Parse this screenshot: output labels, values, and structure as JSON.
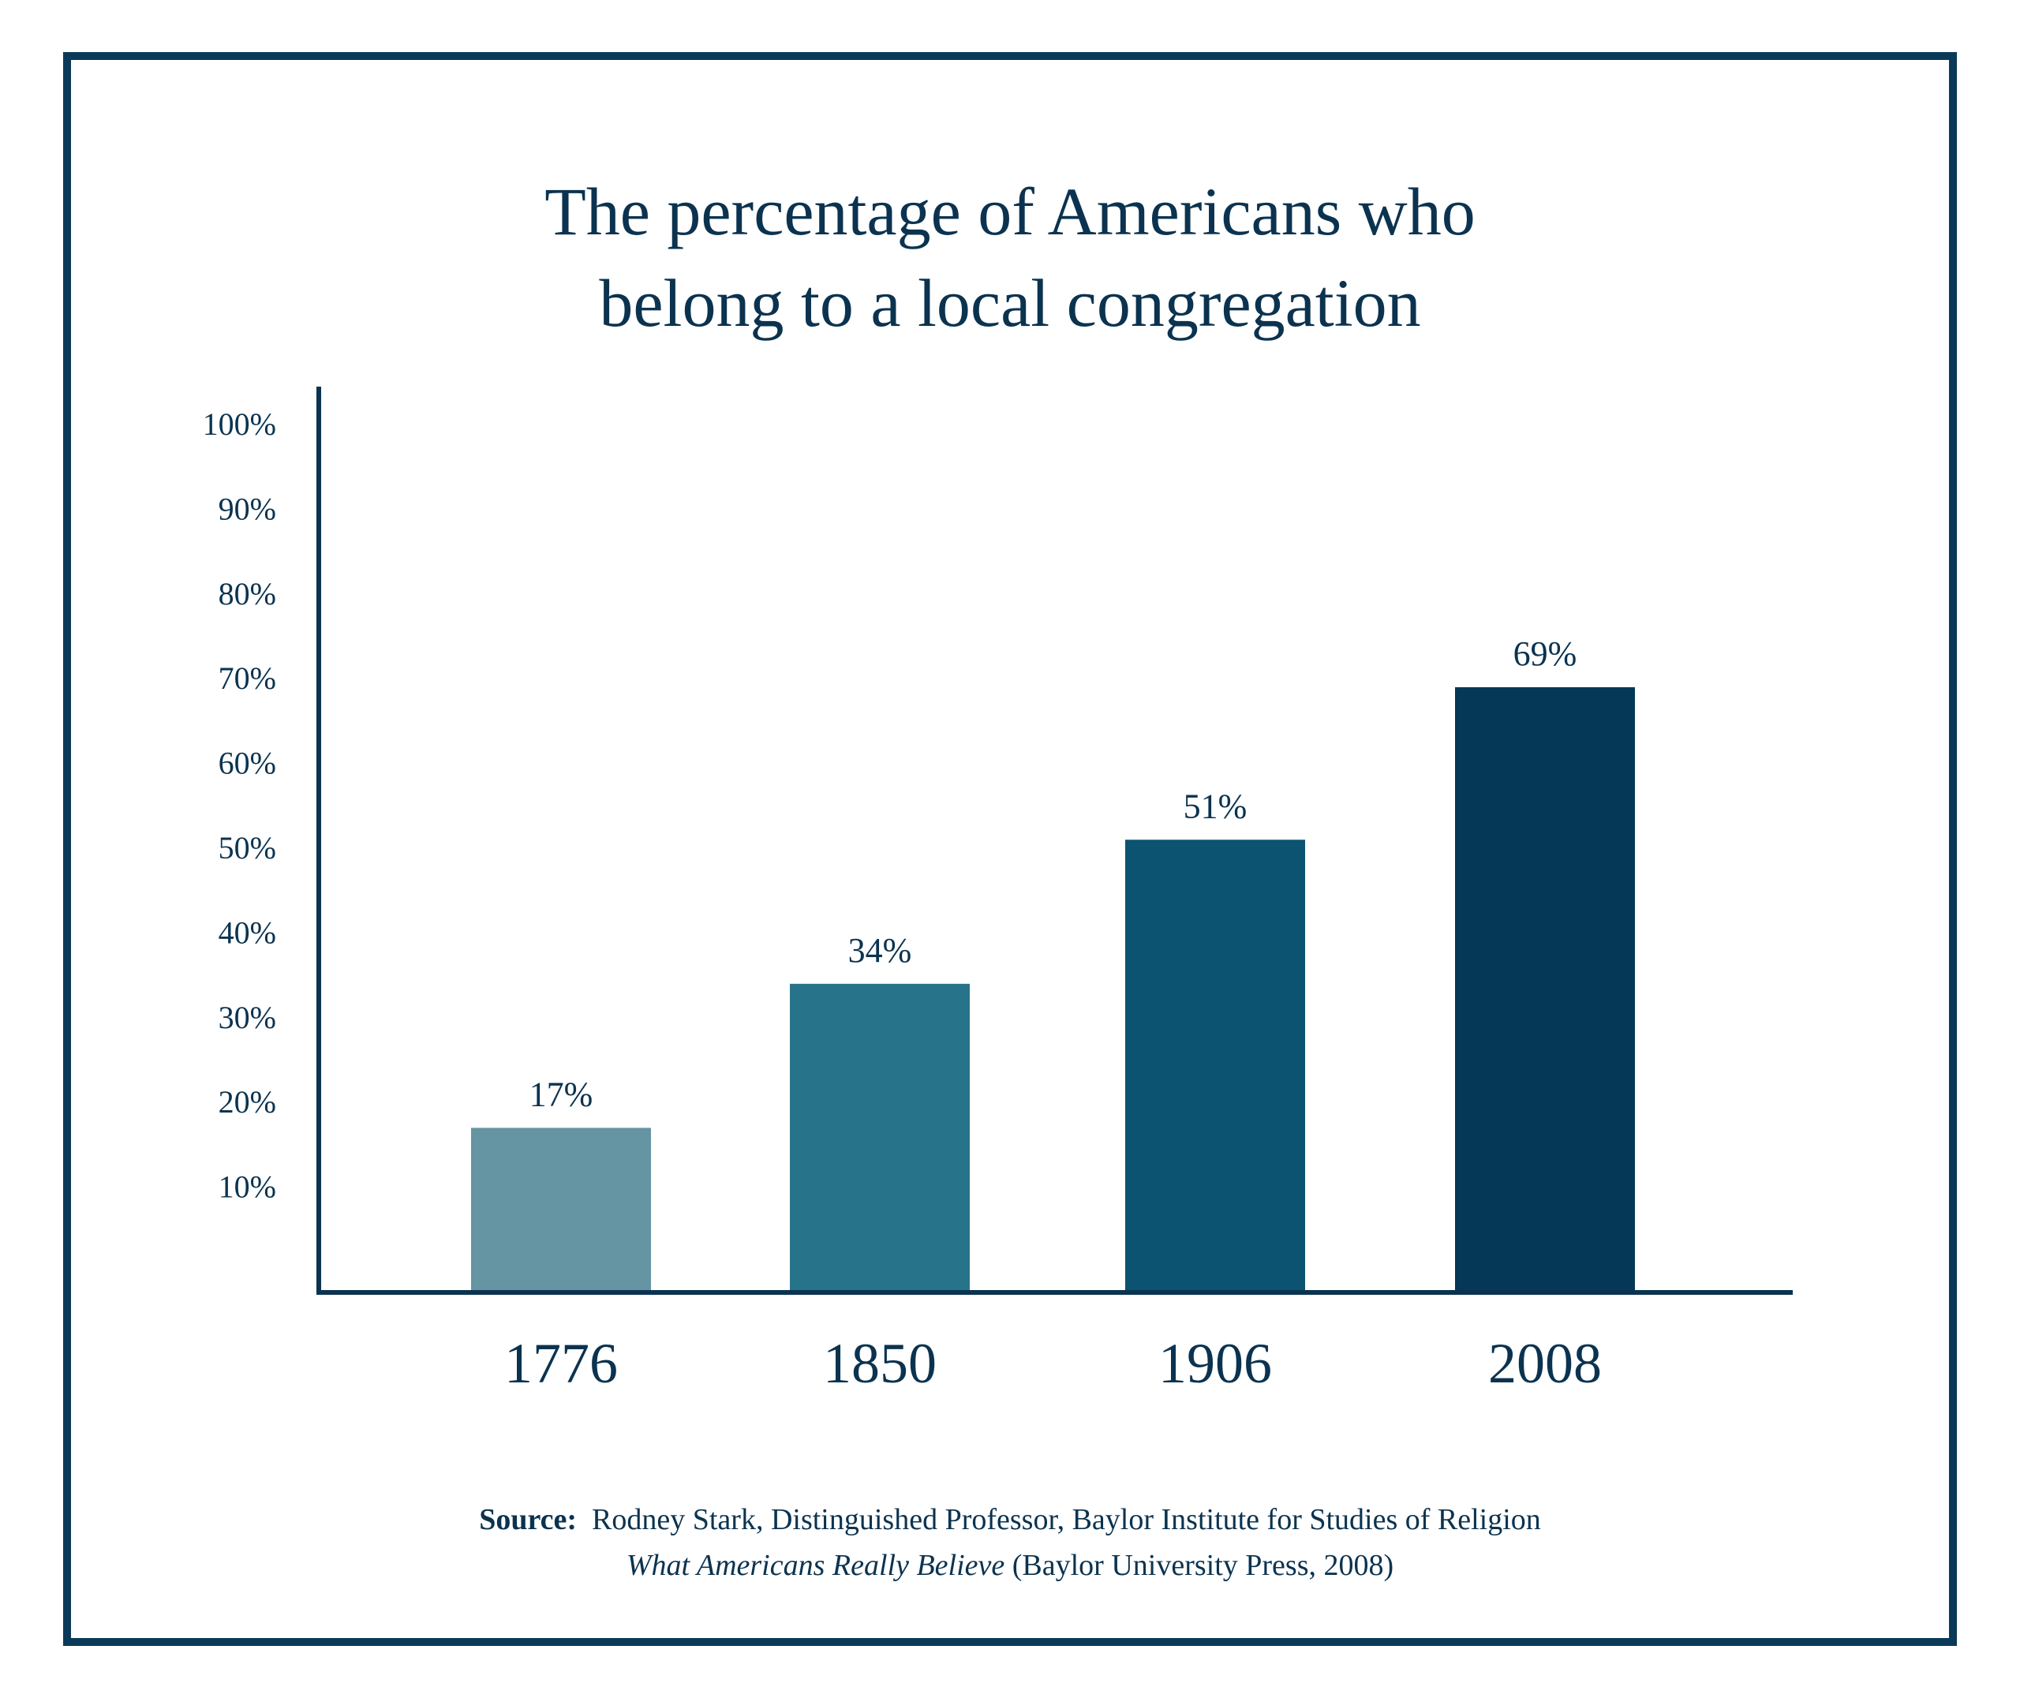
{
  "chart_data": {
    "type": "bar",
    "title_lines": [
      "The percentage of Americans who",
      "belong to a local congregation"
    ],
    "categories": [
      "1776",
      "1850",
      "1906",
      "2008"
    ],
    "values": [
      17,
      34,
      51,
      69
    ],
    "value_labels": [
      "17%",
      "34%",
      "51%",
      "69%"
    ],
    "ylim": [
      0,
      100
    ],
    "yticks": [
      10,
      20,
      30,
      40,
      50,
      60,
      70,
      80,
      90,
      100
    ],
    "ytick_labels": [
      "10%",
      "20%",
      "30%",
      "40%",
      "50%",
      "60%",
      "70%",
      "80%",
      "90%",
      "100%"
    ],
    "grid": false,
    "legend": "none",
    "colors": [
      "#6594a3",
      "#27748a",
      "#0b5370",
      "#053756"
    ],
    "axis_color": "#0b3350"
  },
  "source": {
    "label": "Source:",
    "line1_text": "Rodney Stark, Distinguished Professor, Baylor Institute for Studies of Religion",
    "book_title": "What Americans Really Believe",
    "line2_text": "(Baylor University Press, 2008)"
  }
}
